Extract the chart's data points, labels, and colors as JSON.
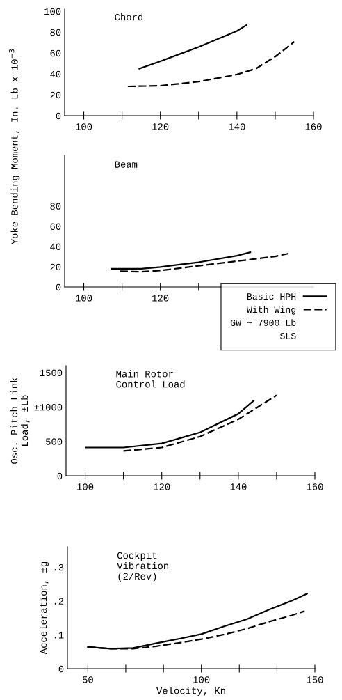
{
  "chart_data": [
    {
      "type": "line",
      "title": "Chord",
      "ylabel": "Yoke Bending Moment, In. Lb x 10$^{−3}$",
      "xlim": [
        95,
        160
      ],
      "xticks": [
        100,
        {
          "value": 110,
          "label": null
        },
        120,
        {
          "value": 130,
          "label": null
        },
        140,
        {
          "value": 150,
          "label": null
        },
        160
      ],
      "ylim": [
        0,
        102
      ],
      "yticks": [
        0,
        20,
        40,
        60,
        80,
        100
      ],
      "grid": false,
      "legend": false,
      "series": [
        {
          "color": "#000000",
          "line_style": "solid",
          "x": [
            114.5,
            120,
            130,
            140,
            142.5
          ],
          "values": [
            45,
            52,
            65.7,
            81,
            86.7
          ]
        },
        {
          "color": "#000000",
          "line_style": "dashed",
          "x": [
            111.5,
            120,
            130,
            140,
            145,
            150,
            155
          ],
          "values": [
            28,
            28.6,
            32.5,
            39.4,
            45,
            56.5,
            70.7
          ]
        }
      ]
    },
    {
      "type": "line",
      "title": "Beam",
      "xlim": [
        95,
        160
      ],
      "xticks": [
        100,
        {
          "value": 110,
          "label": null
        },
        120,
        {
          "value": 130,
          "label": null
        }
      ],
      "ylim": [
        0,
        130
      ],
      "yticks": [
        0,
        20,
        40,
        60,
        80
      ],
      "grid": false,
      "legend": "bottom right",
      "annotations": [
        "GW ~ 7900 Lb",
        "SLS"
      ],
      "series": [
        {
          "name": "Basic HPH",
          "color": "#000000",
          "line_style": "solid",
          "x": [
            107.2,
            115,
            120,
            130,
            140,
            143.5
          ],
          "values": [
            17.9,
            17.9,
            19.7,
            24.4,
            30.9,
            34.3
          ]
        },
        {
          "name": "With Wing",
          "color": "#000000",
          "line_style": "dashed",
          "x": [
            109.5,
            115,
            120,
            130,
            140,
            150,
            153.5
          ],
          "values": [
            15.5,
            15,
            16.2,
            20.9,
            25.5,
            30.2,
            33
          ]
        }
      ]
    },
    {
      "type": "line",
      "title": "Main Rotor\nControl Load",
      "ylabel": "Osc. Pitch Link\nLoad, ±Lb",
      "xlim": [
        95,
        160
      ],
      "xticks": [
        100,
        {
          "value": 110,
          "label": null
        },
        120,
        {
          "value": 130,
          "label": null
        },
        140,
        {
          "value": 150,
          "label": null
        },
        160
      ],
      "ylim": [
        0,
        1600
      ],
      "yticks": [
        0,
        500,
        {
          "value": 1000,
          "label": "±1000"
        },
        1500
      ],
      "grid": false,
      "legend": false,
      "series": [
        {
          "color": "#000000",
          "line_style": "solid",
          "x": [
            100.2,
            110,
            120,
            130,
            140,
            144
          ],
          "values": [
            410,
            410,
            470,
            630,
            900,
            1090
          ]
        },
        {
          "color": "#000000",
          "line_style": "dashed",
          "x": [
            110,
            120,
            130,
            140,
            150
          ],
          "values": [
            360,
            410,
            570,
            820,
            1170
          ]
        }
      ]
    },
    {
      "type": "line",
      "title": "Cockpit\nVibration\n(2/Rev)",
      "ylabel": "Acceleration, ±g",
      "xlabel": "Velocity, Kn",
      "xlim": [
        41,
        150
      ],
      "xticks": [
        50,
        {
          "value": 66.7,
          "label": null
        },
        {
          "value": 83.3,
          "label": null
        },
        100,
        {
          "value": 116.7,
          "label": null
        },
        {
          "value": 133.3,
          "label": null
        },
        150
      ],
      "ylim": [
        0,
        0.36
      ],
      "yticks": [
        0,
        {
          "value": 0.1,
          "label": ".1"
        },
        {
          "value": 0.2,
          "label": ".2"
        },
        {
          "value": 0.3,
          "label": ".3"
        }
      ],
      "grid": false,
      "legend": false,
      "series": [
        {
          "color": "#000000",
          "line_style": "solid",
          "x": [
            50,
            60,
            70,
            80,
            90,
            100,
            110,
            120,
            130,
            140,
            146.5
          ],
          "values": [
            0.064,
            0.059,
            0.061,
            0.075,
            0.088,
            0.102,
            0.125,
            0.146,
            0.175,
            0.201,
            0.221
          ]
        },
        {
          "color": "#000000",
          "line_style": "dashed",
          "x": [
            50,
            60,
            70,
            80,
            90,
            100,
            110,
            120,
            130,
            140,
            145.5
          ],
          "values": [
            0.064,
            0.059,
            0.059,
            0.066,
            0.076,
            0.087,
            0.101,
            0.118,
            0.139,
            0.158,
            0.17
          ]
        }
      ]
    }
  ]
}
